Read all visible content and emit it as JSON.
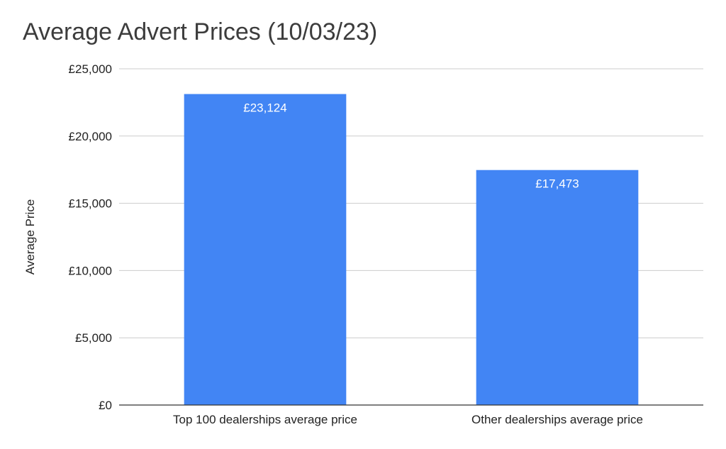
{
  "chart_data": {
    "type": "bar",
    "title": "Average Advert Prices (10/03/23)",
    "xlabel": "",
    "ylabel": "Average Price",
    "categories": [
      "Top 100 dealerships average price",
      "Other dealerships average price"
    ],
    "values": [
      23124,
      17473
    ],
    "data_labels": [
      "£23,124",
      "£17,473"
    ],
    "ylim": [
      0,
      25000
    ],
    "y_ticks": [
      0,
      5000,
      10000,
      15000,
      20000,
      25000
    ],
    "y_tick_labels": [
      "£0",
      "£5,000",
      "£10,000",
      "£15,000",
      "£20,000",
      "£25,000"
    ],
    "grid": true,
    "legend": "none",
    "bar_color": "#4285f4"
  }
}
